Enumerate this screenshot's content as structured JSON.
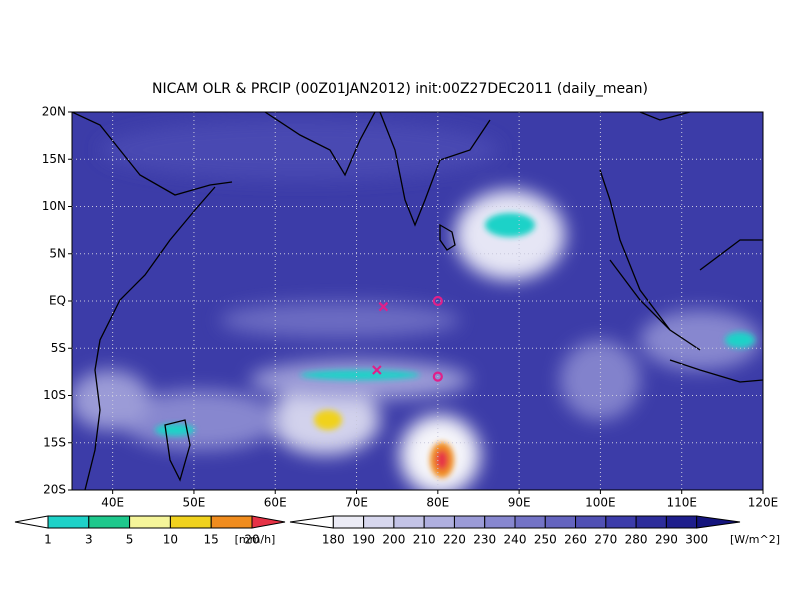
{
  "chart_data": {
    "type": "map",
    "title": "NICAM OLR & PRCIP (00Z01JAN2012) init:00Z27DEC2011 (daily_mean)",
    "xlim": [
      35,
      120
    ],
    "ylim": [
      -20,
      20
    ],
    "xticks": [
      {
        "value": 40,
        "label": "40E"
      },
      {
        "value": 50,
        "label": "50E"
      },
      {
        "value": 60,
        "label": "60E"
      },
      {
        "value": 70,
        "label": "70E"
      },
      {
        "value": 80,
        "label": "80E"
      },
      {
        "value": 90,
        "label": "90E"
      },
      {
        "value": 100,
        "label": "100E"
      },
      {
        "value": 110,
        "label": "110E"
      },
      {
        "value": 120,
        "label": "120E"
      }
    ],
    "yticks": [
      {
        "value": -20,
        "label": "20S"
      },
      {
        "value": -15,
        "label": "15S"
      },
      {
        "value": -10,
        "label": "10S"
      },
      {
        "value": -5,
        "label": "5S"
      },
      {
        "value": 0,
        "label": "EQ"
      },
      {
        "value": 5,
        "label": "5N"
      },
      {
        "value": 10,
        "label": "10N"
      },
      {
        "value": 15,
        "label": "15N"
      },
      {
        "value": 20,
        "label": "20N"
      }
    ],
    "grid": true,
    "markers": [
      {
        "shape": "x",
        "lon": 73.3,
        "lat": -0.6,
        "color": "#e0208a"
      },
      {
        "shape": "x",
        "lon": 72.5,
        "lat": -7.3,
        "color": "#e0208a"
      },
      {
        "shape": "o",
        "lon": 80,
        "lat": 0,
        "color": "#e0208a"
      },
      {
        "shape": "o",
        "lon": 80,
        "lat": -8,
        "color": "#e0208a"
      }
    ],
    "colorbars": [
      {
        "levels": [
          1,
          3,
          5,
          10,
          15,
          20
        ],
        "unit": "[mm/h]",
        "colors": [
          "#ffffff",
          "#1ed2c8",
          "#1ec88c",
          "#f5f59a",
          "#f0d21e",
          "#f08c1e",
          "#e63246"
        ]
      },
      {
        "levels": [
          180,
          190,
          200,
          210,
          220,
          230,
          240,
          250,
          260,
          270,
          280,
          290,
          300
        ],
        "unit": "[W/m^2]",
        "colors": [
          "#ffffff",
          "#ebebf5",
          "#d7d7ee",
          "#c3c3e6",
          "#afafdf",
          "#9b9bd7",
          "#8787cf",
          "#7373c6",
          "#6464bf",
          "#5050b4",
          "#3c3caa",
          "#2d2d9b",
          "#1e1e8c",
          "#14147d"
        ]
      }
    ]
  }
}
